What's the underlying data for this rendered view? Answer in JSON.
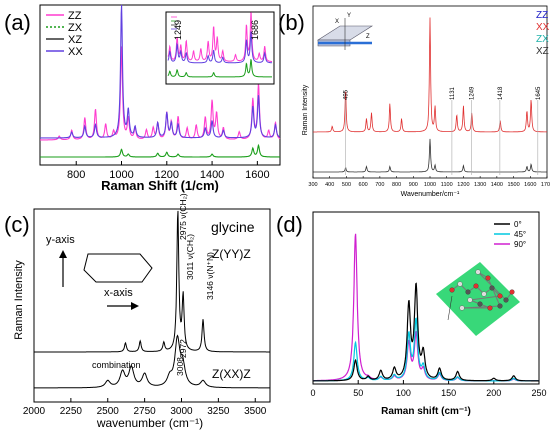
{
  "panels": {
    "a": {
      "label": "(a)"
    },
    "b": {
      "label": "(b)"
    },
    "c": {
      "label": "(c)"
    },
    "d": {
      "label": "(d)"
    }
  },
  "chart_data": [
    {
      "type": "line",
      "panel": "(a)",
      "xlabel": "Raman Shift (1/cm)",
      "ylabel": "",
      "xlim": [
        640,
        1700
      ],
      "xticks": [
        800,
        1000,
        1200,
        1400,
        1600
      ],
      "grid": false,
      "legend": "top-left",
      "series": [
        {
          "name": "ZZ",
          "color": "#ff3ccf",
          "style": "solid",
          "peaks": [
            [
              725,
              4
            ],
            [
              780,
              10
            ],
            [
              838,
              23
            ],
            [
              885,
              32
            ],
            [
              930,
              16
            ],
            [
              965,
              8
            ],
            [
              1000,
              98
            ],
            [
              1030,
              22
            ],
            [
              1060,
              12
            ],
            [
              1110,
              10
            ],
            [
              1140,
              12
            ],
            [
              1160,
              17
            ],
            [
              1200,
              28
            ],
            [
              1220,
              18
            ],
            [
              1250,
              24
            ],
            [
              1290,
              12
            ],
            [
              1330,
              15
            ],
            [
              1370,
              23
            ],
            [
              1400,
              40
            ],
            [
              1420,
              27
            ],
            [
              1450,
              12
            ],
            [
              1520,
              8
            ],
            [
              1580,
              42
            ],
            [
              1605,
              58
            ],
            [
              1650,
              9
            ],
            [
              1680,
              18
            ]
          ]
        },
        {
          "name": "ZX",
          "color": "#1a9e1a",
          "style": "dotted",
          "peaks": [
            [
              1000,
              8
            ],
            [
              1030,
              3
            ],
            [
              1160,
              4
            ],
            [
              1200,
              5
            ],
            [
              1250,
              3
            ],
            [
              1400,
              3
            ],
            [
              1580,
              9
            ],
            [
              1605,
              12
            ]
          ]
        },
        {
          "name": "XZ",
          "color": "#333333",
          "style": "solid",
          "peaks": []
        },
        {
          "name": "XX",
          "color": "#6040e0",
          "style": "solid",
          "peaks": [
            [
              780,
              6
            ],
            [
              838,
              12
            ],
            [
              885,
              14
            ],
            [
              1000,
              140
            ],
            [
              1030,
              28
            ],
            [
              1060,
              11
            ],
            [
              1160,
              16
            ],
            [
              1200,
              26
            ],
            [
              1220,
              15
            ],
            [
              1250,
              14
            ],
            [
              1370,
              10
            ],
            [
              1400,
              18
            ],
            [
              1450,
              8
            ],
            [
              1580,
              32
            ],
            [
              1605,
              44
            ],
            [
              1680,
              14
            ]
          ]
        }
      ],
      "inset": {
        "labels": [
          "1249",
          "1686"
        ],
        "legend": "top-left"
      }
    },
    {
      "type": "line",
      "panel": "(b)",
      "xlabel": "Wavenumber/cm⁻¹",
      "ylabel": "Raman Intensity",
      "xlim": [
        300,
        1700
      ],
      "xticks": [
        300,
        400,
        500,
        600,
        700,
        800,
        900,
        1000,
        1100,
        1200,
        1300,
        1400,
        1500,
        1600,
        1700
      ],
      "grid": false,
      "legend": "top-right",
      "series": [
        {
          "name": "ZZ",
          "color": "#2020c8",
          "peaks": []
        },
        {
          "name": "XX",
          "color": "#e03030",
          "peaks": [
            [
              415,
              6
            ],
            [
              495,
              45
            ],
            [
              620,
              14
            ],
            [
              650,
              20
            ],
            [
              760,
              30
            ],
            [
              830,
              14
            ],
            [
              1000,
              120
            ],
            [
              1030,
              26
            ],
            [
              1160,
              18
            ],
            [
              1200,
              28
            ],
            [
              1250,
              20
            ],
            [
              1420,
              12
            ],
            [
              1580,
              22
            ],
            [
              1605,
              34
            ]
          ]
        },
        {
          "name": "ZX",
          "color": "#20b2aa",
          "peaks": []
        },
        {
          "name": "XZ",
          "color": "#333333",
          "peaks": [
            [
              495,
              8
            ],
            [
              620,
              10
            ],
            [
              760,
              10
            ],
            [
              1000,
              60
            ],
            [
              1030,
              12
            ],
            [
              1200,
              12
            ],
            [
              1580,
              10
            ],
            [
              1605,
              14
            ]
          ]
        }
      ],
      "annotations": [
        "495",
        "1131",
        "1249",
        "1418",
        "1645"
      ],
      "inset_axes": [
        "X",
        "Y",
        "Z"
      ]
    },
    {
      "type": "line",
      "panel": "(c)",
      "title": "glycine",
      "xlabel": "wavenumber (cm⁻¹)",
      "ylabel": "Raman Intensity",
      "xlim": [
        2000,
        3600
      ],
      "xticks": [
        2000,
        2250,
        2500,
        2750,
        3000,
        3250,
        3500
      ],
      "grid": false,
      "series": [
        {
          "name": "Z(YY)Z",
          "color": "#000000",
          "peaks": [
            [
              2620,
              5
            ],
            [
              2720,
              6
            ],
            [
              2880,
              5
            ],
            [
              2975,
              78
            ],
            [
              3011,
              30
            ],
            [
              3146,
              18
            ]
          ]
        },
        {
          "name": "Z(XX)Z",
          "color": "#000000",
          "peaks": [
            [
              2500,
              6
            ],
            [
              2600,
              14
            ],
            [
              2660,
              18
            ],
            [
              2750,
              12
            ],
            [
              2920,
              8
            ],
            [
              2972,
              42
            ],
            [
              3008,
              18
            ],
            [
              3146,
              6
            ]
          ]
        }
      ],
      "annotations": [
        "2975 ν(CH₂)",
        "3011 ν(CH₂)",
        "3146 ν(N⁺N)",
        "2972",
        "3008",
        "combination"
      ],
      "inset_text": [
        "y-axis",
        "x-axis"
      ],
      "series_labels": [
        "Z(YY)Z",
        "Z(XX)Z"
      ]
    },
    {
      "type": "line",
      "panel": "(d)",
      "xlabel": "Raman shift (cm⁻¹)",
      "ylabel": "",
      "xlim": [
        0,
        250
      ],
      "xticks": [
        0,
        50,
        100,
        150,
        200,
        250
      ],
      "grid": false,
      "legend": "top-right",
      "series": [
        {
          "name": "0°",
          "color": "#000000",
          "peaks": [
            [
              47,
              32
            ],
            [
              61,
              6
            ],
            [
              75,
              15
            ],
            [
              90,
              18
            ],
            [
              106,
              115
            ],
            [
              114,
              142
            ],
            [
              122,
              40
            ],
            [
              140,
              18
            ],
            [
              160,
              14
            ],
            [
              200,
              4
            ],
            [
              222,
              8
            ]
          ]
        },
        {
          "name": "45°",
          "color": "#00c8e0",
          "peaks": [
            [
              47,
              60
            ],
            [
              61,
              4
            ],
            [
              75,
              6
            ],
            [
              90,
              8
            ],
            [
              106,
              70
            ],
            [
              114,
              92
            ],
            [
              122,
              20
            ],
            [
              140,
              12
            ],
            [
              160,
              6
            ],
            [
              222,
              4
            ]
          ]
        },
        {
          "name": "90°",
          "color": "#d020d0",
          "peaks": [
            [
              47,
              230
            ],
            [
              61,
              3
            ],
            [
              75,
              4
            ],
            [
              90,
              6
            ],
            [
              106,
              58
            ],
            [
              114,
              72
            ],
            [
              122,
              16
            ],
            [
              140,
              10
            ],
            [
              160,
              5
            ],
            [
              222,
              3
            ]
          ]
        }
      ]
    }
  ]
}
